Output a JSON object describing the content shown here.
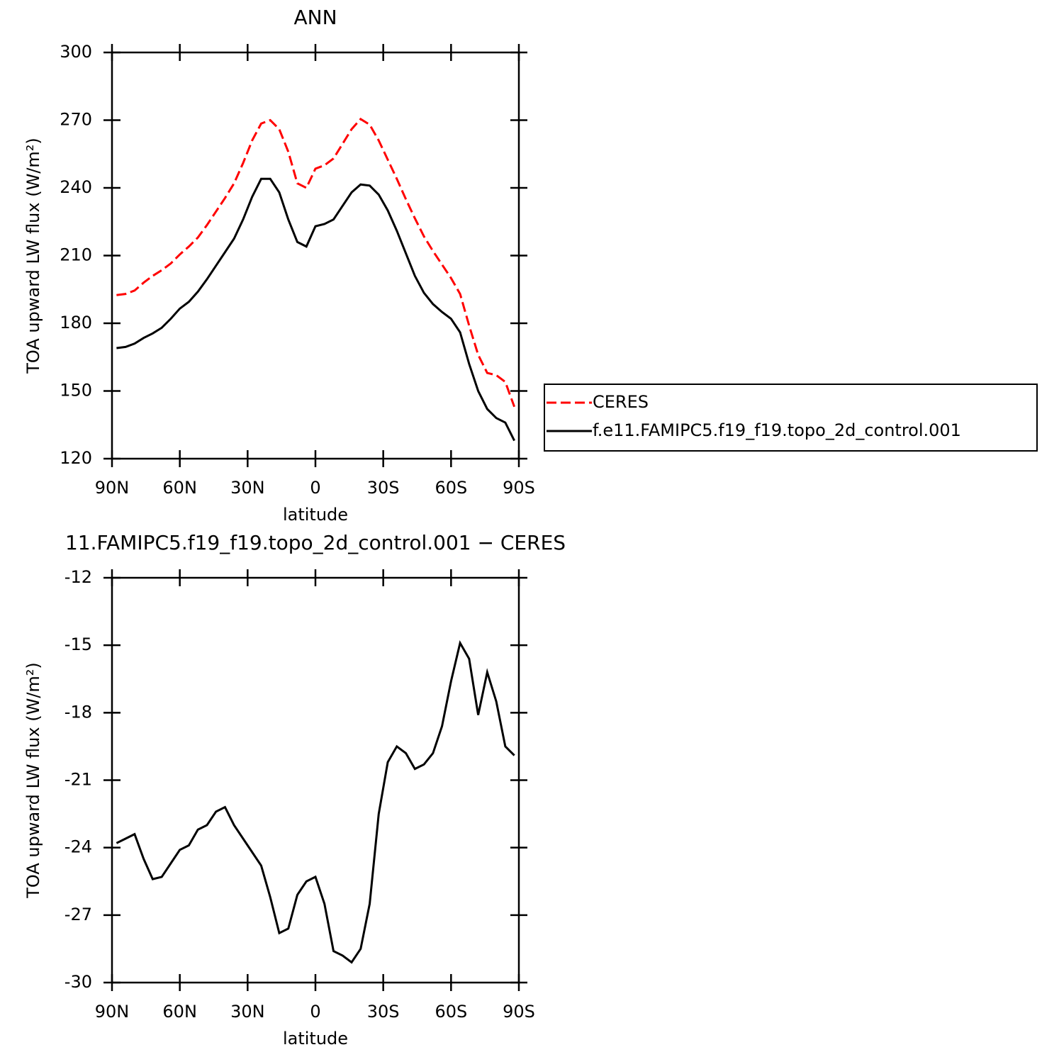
{
  "chart_data": [
    {
      "type": "line",
      "title": "ANN",
      "xlabel": "latitude",
      "ylabel": "TOA upward LW flux (W/m²)",
      "x": [
        88,
        84,
        80,
        76,
        72,
        68,
        64,
        60,
        56,
        52,
        48,
        44,
        40,
        36,
        32,
        28,
        24,
        20,
        16,
        12,
        8,
        4,
        0,
        -4,
        -8,
        -12,
        -16,
        -20,
        -24,
        -28,
        -32,
        -36,
        -40,
        -44,
        -48,
        -52,
        -56,
        -60,
        -64,
        -68,
        -72,
        -76,
        -80,
        -84,
        -88
      ],
      "series": [
        {
          "name": "CERES",
          "color": "#ff0000",
          "style": "dashed",
          "values": [
            192.5,
            193,
            194.5,
            198,
            201,
            203.5,
            206.5,
            210.5,
            214,
            218,
            223.5,
            229.5,
            235.5,
            242,
            251,
            261,
            268.5,
            270,
            266,
            256,
            242,
            240,
            248.5,
            250,
            253,
            259.5,
            266,
            270.5,
            268,
            261,
            252.5,
            244,
            235,
            226.5,
            218.5,
            212,
            206,
            200,
            193,
            179,
            166,
            158,
            157,
            154,
            143
          ]
        },
        {
          "name": "f.e11.FAMIPC5.f19_f19.topo_2d_control.001",
          "color": "#000000",
          "style": "solid",
          "values": [
            169,
            169.5,
            171,
            173.5,
            175.5,
            178,
            182,
            186.5,
            189.5,
            194,
            199.5,
            205.5,
            211.5,
            217.5,
            226,
            236,
            244,
            244,
            238,
            226,
            216,
            214,
            223,
            224,
            226,
            232,
            238,
            241.5,
            241,
            237,
            230,
            221,
            211,
            201,
            193.5,
            188.5,
            185,
            182,
            176,
            162,
            150,
            142,
            138,
            136,
            128
          ]
        }
      ],
      "xlim": [
        90,
        -90
      ],
      "xticks": [
        {
          "value": 90,
          "label": "90N"
        },
        {
          "value": 60,
          "label": "60N"
        },
        {
          "value": 30,
          "label": "30N"
        },
        0,
        {
          "value": -30,
          "label": "30S"
        },
        {
          "value": -60,
          "label": "60S"
        },
        {
          "value": -90,
          "label": "90S"
        }
      ],
      "ylim": [
        120,
        300
      ],
      "yticks": [
        120,
        150,
        180,
        210,
        240,
        270,
        300
      ],
      "legend": "right"
    },
    {
      "type": "line",
      "title": "11.FAMIPC5.f19_f19.topo_2d_control.001 − CERES",
      "xlabel": "latitude",
      "ylabel": "TOA upward LW flux (W/m²)",
      "x": [
        88,
        84,
        80,
        76,
        72,
        68,
        64,
        60,
        56,
        52,
        48,
        44,
        40,
        36,
        32,
        28,
        24,
        20,
        16,
        12,
        8,
        4,
        0,
        -4,
        -8,
        -12,
        -16,
        -20,
        -24,
        -28,
        -32,
        -36,
        -40,
        -44,
        -48,
        -52,
        -56,
        -60,
        -64,
        -68,
        -72,
        -76,
        -80,
        -84,
        -88
      ],
      "values": [
        -23.8,
        -23.6,
        -23.4,
        -24.5,
        -25.4,
        -25.3,
        -24.7,
        -24.1,
        -23.9,
        -23.2,
        -23.0,
        -22.4,
        -22.2,
        -23.0,
        -23.6,
        -24.2,
        -24.8,
        -26.2,
        -27.8,
        -27.6,
        -26.1,
        -25.5,
        -25.3,
        -26.5,
        -28.6,
        -28.8,
        -29.1,
        -28.5,
        -26.5,
        -22.5,
        -20.2,
        -19.5,
        -19.8,
        -20.5,
        -20.3,
        -19.8,
        -18.6,
        -16.6,
        -14.9,
        -15.6,
        -18.1,
        -16.2,
        -17.5,
        -19.5,
        -19.9
      ],
      "color": "#000000",
      "xlim": [
        90,
        -90
      ],
      "xticks": [
        {
          "value": 90,
          "label": "90N"
        },
        {
          "value": 60,
          "label": "60N"
        },
        {
          "value": 30,
          "label": "30N"
        },
        0,
        {
          "value": -30,
          "label": "30S"
        },
        {
          "value": -60,
          "label": "60S"
        },
        {
          "value": -90,
          "label": "90S"
        }
      ],
      "ylim": [
        -30,
        -12
      ],
      "yticks": [
        -30,
        -27,
        -24,
        -21,
        -18,
        -15,
        -12
      ]
    }
  ]
}
